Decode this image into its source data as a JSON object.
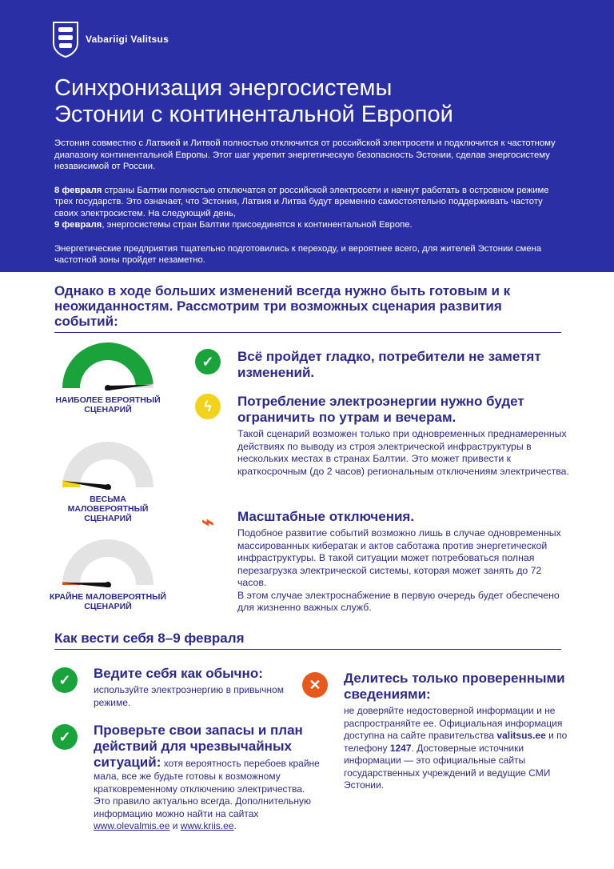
{
  "header": {
    "logo_text": "Vabariigi Valitsus",
    "title_line1": "Синхронизация энергосистемы",
    "title_line2": "Эстонии с континентальной Европой",
    "p1": "Эстония совместно с Латвией и Литвой полностью отключится от российской электросети и подключится к частотному диапазону континентальной Европы. Этот шаг укрепит энергетическую безопасность Эстонии, сделав энергосистему независимой от России.",
    "p2_bold1": "8 февраля",
    "p2_a": " страны Балтии полностью отключатся от российской электросети и начнут работать в островном режиме трех государств. Это означает, что Эстония, Латвия и Литва будут временно самостоятельно поддерживать частоту своих электросистем. На следующий день, ",
    "p2_bold2": "9 февраля",
    "p2_b": ", энергосистемы стран Балтии присоединятся к континентальной Европе.",
    "p3": "Энергетические предприятия тщательно подготовились к переходу, и вероятнее всего, для жителей Эстонии смена частотной зоны пройдет незаметно."
  },
  "scenarios_heading": "Однако в ходе больших изменений всегда нужно быть готовым и к неожиданностям. Рассмотрим три возможных сценария развития событий:",
  "gauges": [
    {
      "label_line1": "НАИБОЛЕЕ ВЕРОЯТНЫЙ",
      "label_line2": "СЦЕНАРИЙ",
      "level": 0.97,
      "color": "#1aa33a"
    },
    {
      "label_line1": "ВЕСЬМА",
      "label_line2": "МАЛОВЕРОЯТНЫЙ СЦЕНАРИЙ",
      "level": 0.05,
      "color": "#f2d21b"
    },
    {
      "label_line1": "КРАЙНЕ МАЛОВЕРОЯТНЫЙ",
      "label_line2": "СЦЕНАРИЙ",
      "level": 0.02,
      "color": "#e2531b"
    }
  ],
  "scenarios": [
    {
      "icon": "check-icon",
      "color": "#1aa33a",
      "title": "Всё пройдет гладко, потребители не заметят изменений.",
      "text": ""
    },
    {
      "icon": "lightning-icon",
      "color": "#f2d21b",
      "title": "Потребление электроэнергии нужно будет ограничить по утрам и вечерам.",
      "text": "Такой сценарий возможен только при одновременных преднамеренных действиях по выводу из строя электрической инфраструктуры в нескольких местах в странах Балтии. Это может привести к краткосрочным (до 2 часов) региональным отключениям электричества."
    },
    {
      "icon": "unplugged-icon",
      "color": "#e8581c",
      "title": "Масштабные отключения.",
      "text": "Подобное развитие событий возможно лишь в случае одновременных массированных кибератак и актов саботажа против энергетической инфраструктуры. В такой ситуации может потребоваться полная перезагрузка электрической системы, которая может занять до 72 часов.",
      "text2": "В этом случае электроснабжение в первую очередь будет обеспечено для жизненно важных служб."
    }
  ],
  "behave_heading": "Как вести себя 8–9 февраля",
  "tips": [
    {
      "icon": "check-icon",
      "title": "Ведите себя как обычно:",
      "text": "используйте электроэнергию в привычном режиме."
    },
    {
      "icon": "check-icon",
      "title": "Проверьте свои запасы и план действий для чрезвычайных ситуаций:",
      "text": " хотя вероятность перебоев крайне мала, все же будьте готовы к возможному кратковременному отключению электричества. Это правило актуально всегда. Дополнительную информацию можно найти на сайтах ",
      "link1": "www.olevalmis.ee",
      "and": " и ",
      "link2": "www.kriis.ee",
      "end": "."
    },
    {
      "icon": "cross-icon",
      "title": "Делитесь только проверенными сведениями:",
      "text_a": "не доверяйте недостоверной информации и не распространяйте ее. Официальная информация доступна на сайте правительства ",
      "bold1": "valitsus.ee",
      "text_b": " и по телефону ",
      "bold2": "1247",
      "text_c": ". Достоверные источники информации — это официальные сайты государственных учреждений и ведущие СМИ Эстонии."
    }
  ],
  "colors": {
    "brand_blue": "#2b2fa5",
    "navy_text": "#2b2a8c",
    "green": "#1aa33a",
    "yellow": "#f2d21b",
    "orange": "#e8581c"
  }
}
